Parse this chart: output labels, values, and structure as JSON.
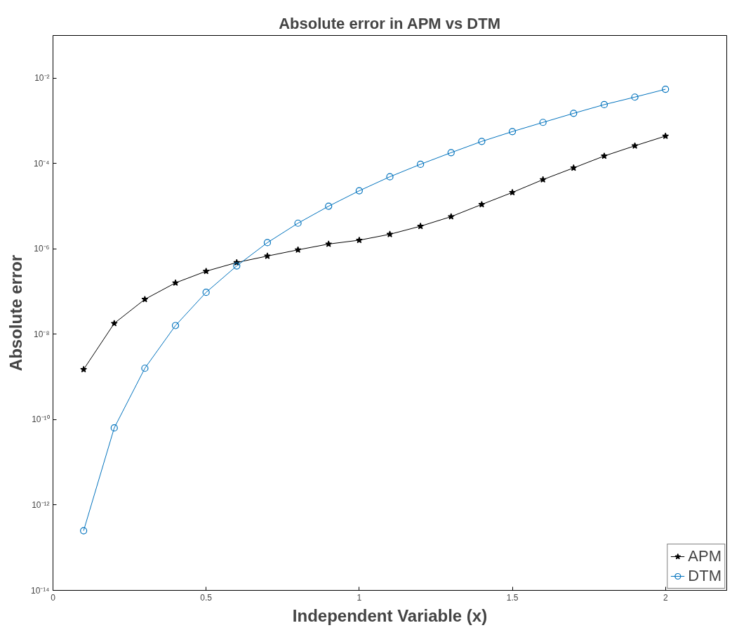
{
  "chart_data": {
    "type": "line",
    "title": "Absolute error in APM vs DTM",
    "xlabel": "Independent Variable (x)",
    "ylabel": "Absolute error",
    "x": [
      0.1,
      0.2,
      0.3,
      0.4,
      0.5,
      0.6,
      0.7,
      0.8,
      0.9,
      1.0,
      1.1,
      1.2,
      1.3,
      1.4,
      1.5,
      1.6,
      1.7,
      1.8,
      1.9,
      2.0
    ],
    "series": [
      {
        "name": "APM",
        "color": "#000000",
        "marker": "star",
        "values": [
          1.5e-09,
          1.8e-08,
          6.6e-08,
          1.6e-07,
          3e-07,
          4.8e-07,
          6.8e-07,
          9.5e-07,
          1.3e-06,
          1.6e-06,
          2.2e-06,
          3.4e-06,
          5.7e-06,
          1.1e-05,
          2.1e-05,
          4.2e-05,
          7.9e-05,
          0.00015,
          0.00026,
          0.00044
        ]
      },
      {
        "name": "DTM",
        "color": "#0072bd",
        "marker": "circle",
        "values": [
          2.5e-13,
          6.4e-11,
          1.6e-09,
          1.6e-08,
          9.6e-08,
          4e-07,
          1.4e-06,
          4e-06,
          1e-05,
          2.3e-05,
          4.9e-05,
          9.6e-05,
          0.00018,
          0.00033,
          0.00056,
          0.00092,
          0.0015,
          0.0024,
          0.0036,
          0.0055
        ]
      }
    ],
    "log": "y",
    "xlim": [
      0,
      2.2
    ],
    "ylim": [
      1e-14,
      0.1
    ],
    "xticks": [
      0,
      0.5,
      1,
      1.5,
      2
    ],
    "yticks": [
      {
        "value": 1e-14,
        "label": "10⁻¹⁴"
      },
      {
        "value": 1e-12,
        "label": "10⁻¹²"
      },
      {
        "value": 1e-10,
        "label": "10⁻¹⁰"
      },
      {
        "value": 1e-08,
        "label": "10⁻⁸"
      },
      {
        "value": 1e-06,
        "label": "10⁻⁶"
      },
      {
        "value": 0.0001,
        "label": "10⁻⁴"
      },
      {
        "value": 0.01,
        "label": "10⁻²"
      }
    ],
    "grid": false,
    "legend": "bottom right",
    "line_style": "solid"
  }
}
